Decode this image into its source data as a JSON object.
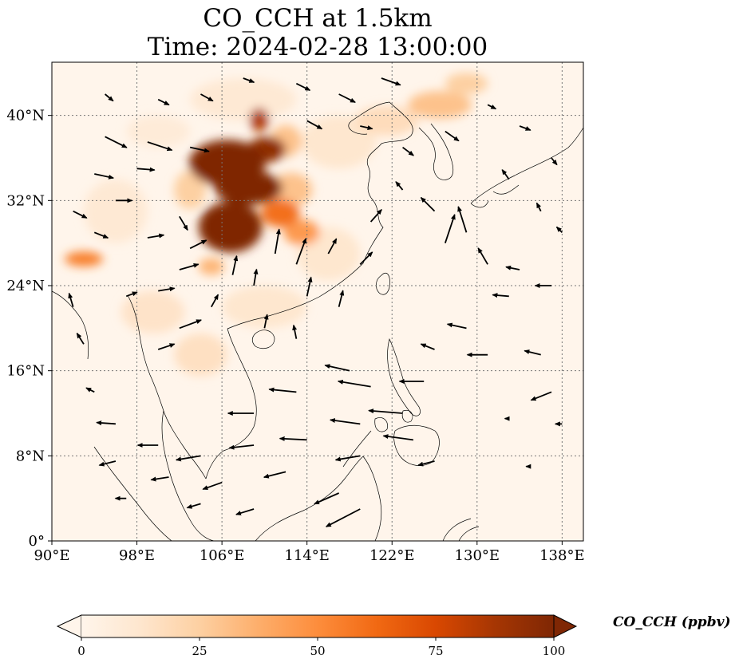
{
  "title": {
    "line1": "CO_CCH at 1.5km",
    "line2": "Time: 2024-02-28 13:00:00"
  },
  "map": {
    "lon_range": [
      90,
      140
    ],
    "lat_range": [
      0,
      45
    ],
    "lon_ticks": [
      {
        "value": 90,
        "label": "90°E"
      },
      {
        "value": 98,
        "label": "98°E"
      },
      {
        "value": 106,
        "label": "106°E"
      },
      {
        "value": 114,
        "label": "114°E"
      },
      {
        "value": 122,
        "label": "122°E"
      },
      {
        "value": 130,
        "label": "130°E"
      },
      {
        "value": 138,
        "label": "138°E"
      }
    ],
    "lat_ticks": [
      {
        "value": 0,
        "label": "0°"
      },
      {
        "value": 8,
        "label": "8°N"
      },
      {
        "value": 16,
        "label": "16°N"
      },
      {
        "value": 24,
        "label": "24°N"
      },
      {
        "value": 32,
        "label": "32°N"
      },
      {
        "value": 40,
        "label": "40°N"
      }
    ],
    "gridlines": "dotted",
    "background_color": "#fff5eb",
    "plumes": [
      {
        "lon": 106.5,
        "lat": 35.5,
        "rlon": 3.6,
        "rlat": 2.2,
        "value": 100
      },
      {
        "lon": 108.5,
        "lat": 33.2,
        "rlon": 3.2,
        "rlat": 1.6,
        "value": 100
      },
      {
        "lon": 106.8,
        "lat": 29.5,
        "rlon": 3.0,
        "rlat": 2.4,
        "value": 100
      },
      {
        "lon": 110.2,
        "lat": 36.8,
        "rlon": 1.8,
        "rlat": 1.2,
        "value": 95
      },
      {
        "lon": 109.5,
        "lat": 39.6,
        "rlon": 0.9,
        "rlat": 1.1,
        "value": 85
      },
      {
        "lon": 111.5,
        "lat": 30.8,
        "rlon": 1.8,
        "rlat": 1.3,
        "value": 60
      },
      {
        "lon": 113.5,
        "lat": 29.0,
        "rlon": 1.7,
        "rlat": 1.2,
        "value": 45
      },
      {
        "lon": 112.5,
        "lat": 33.0,
        "rlon": 2.0,
        "rlat": 1.6,
        "value": 30
      },
      {
        "lon": 105.0,
        "lat": 25.8,
        "rlon": 1.2,
        "rlat": 0.8,
        "value": 35
      },
      {
        "lon": 103.0,
        "lat": 33.0,
        "rlon": 1.5,
        "rlat": 1.8,
        "value": 25
      },
      {
        "lon": 112.0,
        "lat": 37.6,
        "rlon": 1.5,
        "rlat": 1.5,
        "value": 30
      },
      {
        "lon": 93.0,
        "lat": 26.5,
        "rlon": 1.8,
        "rlat": 0.7,
        "value": 55
      },
      {
        "lon": 126.5,
        "lat": 41.0,
        "rlon": 3.0,
        "rlat": 1.3,
        "value": 30
      },
      {
        "lon": 121.5,
        "lat": 39.5,
        "rlon": 3.0,
        "rlat": 1.4,
        "value": 18
      },
      {
        "lon": 129.0,
        "lat": 43.0,
        "rlon": 2.0,
        "rlat": 1.0,
        "value": 25
      },
      {
        "lon": 117.0,
        "lat": 37.5,
        "rlon": 3.5,
        "rlat": 2.5,
        "value": 12
      },
      {
        "lon": 99.5,
        "lat": 21.5,
        "rlon": 3.0,
        "rlat": 2.0,
        "value": 14
      },
      {
        "lon": 104.0,
        "lat": 17.5,
        "rlon": 2.5,
        "rlat": 2.0,
        "value": 16
      },
      {
        "lon": 110.0,
        "lat": 22.0,
        "rlon": 4.0,
        "rlat": 2.0,
        "value": 12
      },
      {
        "lon": 116.0,
        "lat": 27.0,
        "rlon": 3.0,
        "rlat": 2.5,
        "value": 12
      },
      {
        "lon": 96.0,
        "lat": 31.0,
        "rlon": 3.0,
        "rlat": 3.0,
        "value": 10
      },
      {
        "lon": 108.0,
        "lat": 41.5,
        "rlon": 5.0,
        "rlat": 2.0,
        "value": 10
      },
      {
        "lon": 100.0,
        "lat": 38.5,
        "rlon": 3.0,
        "rlat": 1.5,
        "value": 8
      }
    ],
    "wind_vectors": [
      {
        "lon": 95,
        "lat": 38,
        "u": 1.6,
        "v": -0.8
      },
      {
        "lon": 99,
        "lat": 37.5,
        "u": 1.8,
        "v": -0.6
      },
      {
        "lon": 103,
        "lat": 37,
        "u": 1.4,
        "v": -0.3
      },
      {
        "lon": 94,
        "lat": 34.5,
        "u": 1.4,
        "v": -0.3
      },
      {
        "lon": 98,
        "lat": 35,
        "u": 1.3,
        "v": -0.1
      },
      {
        "lon": 96,
        "lat": 32,
        "u": 1.2,
        "v": 0
      },
      {
        "lon": 92,
        "lat": 31,
        "u": 1.0,
        "v": -0.5
      },
      {
        "lon": 94,
        "lat": 29,
        "u": 1.0,
        "v": -0.4
      },
      {
        "lon": 99,
        "lat": 28.5,
        "u": 1.2,
        "v": 0.2
      },
      {
        "lon": 102,
        "lat": 30.5,
        "u": 0.6,
        "v": -1.0
      },
      {
        "lon": 103,
        "lat": 27.5,
        "u": 1.2,
        "v": 0.6
      },
      {
        "lon": 102,
        "lat": 25.5,
        "u": 1.4,
        "v": 0.4
      },
      {
        "lon": 100,
        "lat": 23.5,
        "u": 1.2,
        "v": 0.2
      },
      {
        "lon": 102,
        "lat": 20,
        "u": 1.6,
        "v": 0.6
      },
      {
        "lon": 100,
        "lat": 18,
        "u": 1.2,
        "v": 0.4
      },
      {
        "lon": 97,
        "lat": 23,
        "u": 0.8,
        "v": 0.3
      },
      {
        "lon": 105,
        "lat": 22,
        "u": 0.5,
        "v": 0.9
      },
      {
        "lon": 107,
        "lat": 25,
        "u": 0.3,
        "v": 1.4
      },
      {
        "lon": 109,
        "lat": 24,
        "u": 0.2,
        "v": 1.2
      },
      {
        "lon": 111,
        "lat": 27,
        "u": 0.3,
        "v": 1.8
      },
      {
        "lon": 113,
        "lat": 26,
        "u": 0.7,
        "v": 1.9
      },
      {
        "lon": 116,
        "lat": 27,
        "u": 0.6,
        "v": 1.1
      },
      {
        "lon": 119,
        "lat": 26,
        "u": 0.9,
        "v": 0.9
      },
      {
        "lon": 114,
        "lat": 23,
        "u": 0.3,
        "v": 1.4
      },
      {
        "lon": 117,
        "lat": 22,
        "u": 0.3,
        "v": 1.2
      },
      {
        "lon": 110,
        "lat": 20,
        "u": 0.2,
        "v": 1.0
      },
      {
        "lon": 113,
        "lat": 19,
        "u": -0.2,
        "v": 1.0
      },
      {
        "lon": 120,
        "lat": 30,
        "u": 0.8,
        "v": 0.9
      },
      {
        "lon": 123,
        "lat": 33,
        "u": -0.5,
        "v": 0.6
      },
      {
        "lon": 126,
        "lat": 31,
        "u": -1.0,
        "v": 1.0
      },
      {
        "lon": 127,
        "lat": 28,
        "u": 0.7,
        "v": 2.1
      },
      {
        "lon": 129,
        "lat": 29,
        "u": -0.6,
        "v": 1.9
      },
      {
        "lon": 131,
        "lat": 26,
        "u": -0.7,
        "v": 1.2
      },
      {
        "lon": 134,
        "lat": 25.5,
        "u": -1.0,
        "v": 0.2
      },
      {
        "lon": 137,
        "lat": 24,
        "u": -1.2,
        "v": 0
      },
      {
        "lon": 133,
        "lat": 23,
        "u": -1.2,
        "v": 0.1
      },
      {
        "lon": 129,
        "lat": 20,
        "u": -1.4,
        "v": 0.3
      },
      {
        "lon": 126,
        "lat": 18,
        "u": -1.0,
        "v": 0.4
      },
      {
        "lon": 131,
        "lat": 17.5,
        "u": -1.5,
        "v": 0
      },
      {
        "lon": 136,
        "lat": 17.5,
        "u": -1.2,
        "v": 0.3
      },
      {
        "lon": 125,
        "lat": 15,
        "u": -1.8,
        "v": 0
      },
      {
        "lon": 120,
        "lat": 14.5,
        "u": -2.4,
        "v": 0.4
      },
      {
        "lon": 118,
        "lat": 16,
        "u": -1.8,
        "v": 0.4
      },
      {
        "lon": 113,
        "lat": 14,
        "u": -2.0,
        "v": 0.2
      },
      {
        "lon": 109,
        "lat": 12,
        "u": -1.9,
        "v": 0
      },
      {
        "lon": 119,
        "lat": 11,
        "u": -2.2,
        "v": 0.3
      },
      {
        "lon": 123,
        "lat": 12,
        "u": -2.5,
        "v": 0.2
      },
      {
        "lon": 114,
        "lat": 9.5,
        "u": -2.0,
        "v": 0.1
      },
      {
        "lon": 119,
        "lat": 8,
        "u": -1.8,
        "v": -0.3
      },
      {
        "lon": 124,
        "lat": 9.5,
        "u": -2.2,
        "v": 0.3
      },
      {
        "lon": 109,
        "lat": 9,
        "u": -1.8,
        "v": -0.2
      },
      {
        "lon": 104,
        "lat": 8,
        "u": -1.8,
        "v": -0.3
      },
      {
        "lon": 100,
        "lat": 9,
        "u": -1.5,
        "v": 0
      },
      {
        "lon": 96,
        "lat": 11,
        "u": -1.4,
        "v": 0.1
      },
      {
        "lon": 96,
        "lat": 7.5,
        "u": -1.2,
        "v": -0.3
      },
      {
        "lon": 101,
        "lat": 6,
        "u": -1.3,
        "v": -0.2
      },
      {
        "lon": 106,
        "lat": 5.5,
        "u": -1.4,
        "v": -0.5
      },
      {
        "lon": 112,
        "lat": 6.5,
        "u": -1.6,
        "v": -0.4
      },
      {
        "lon": 117,
        "lat": 4.5,
        "u": -1.8,
        "v": -0.8
      },
      {
        "lon": 119,
        "lat": 3,
        "u": -2.5,
        "v": -1.3
      },
      {
        "lon": 126,
        "lat": 7.5,
        "u": -1.2,
        "v": -0.3
      },
      {
        "lon": 109,
        "lat": 3,
        "u": -1.3,
        "v": -0.4
      },
      {
        "lon": 104,
        "lat": 3.5,
        "u": -1.0,
        "v": -0.3
      },
      {
        "lon": 97,
        "lat": 4,
        "u": -0.8,
        "v": 0
      },
      {
        "lon": 94,
        "lat": 14,
        "u": -0.6,
        "v": 0.3
      },
      {
        "lon": 93,
        "lat": 18.5,
        "u": -0.5,
        "v": 0.8
      },
      {
        "lon": 92,
        "lat": 22,
        "u": -0.3,
        "v": 1.0
      },
      {
        "lon": 95,
        "lat": 42,
        "u": 0.6,
        "v": -0.5
      },
      {
        "lon": 100,
        "lat": 41.5,
        "u": 0.8,
        "v": -0.4
      },
      {
        "lon": 104,
        "lat": 42,
        "u": 0.9,
        "v": -0.5
      },
      {
        "lon": 108,
        "lat": 43.5,
        "u": 0.8,
        "v": -0.3
      },
      {
        "lon": 113,
        "lat": 43,
        "u": 1.0,
        "v": -0.5
      },
      {
        "lon": 117,
        "lat": 42,
        "u": 1.2,
        "v": -0.6
      },
      {
        "lon": 121,
        "lat": 43.5,
        "u": 1.4,
        "v": -0.5
      },
      {
        "lon": 114,
        "lat": 39.5,
        "u": 1.1,
        "v": -0.6
      },
      {
        "lon": 119,
        "lat": 39,
        "u": 0.9,
        "v": -0.2
      },
      {
        "lon": 123,
        "lat": 37,
        "u": 0.8,
        "v": -0.6
      },
      {
        "lon": 127,
        "lat": 38.5,
        "u": 1.0,
        "v": -0.7
      },
      {
        "lon": 131,
        "lat": 41,
        "u": 0.6,
        "v": -0.3
      },
      {
        "lon": 134,
        "lat": 39,
        "u": 0.8,
        "v": -0.3
      },
      {
        "lon": 137,
        "lat": 36,
        "u": 0.4,
        "v": -0.5
      },
      {
        "lon": 133,
        "lat": 34,
        "u": -0.5,
        "v": 0.7
      },
      {
        "lon": 136,
        "lat": 31,
        "u": -0.3,
        "v": 0.6
      },
      {
        "lon": 138,
        "lat": 29,
        "u": -0.4,
        "v": 0.4
      },
      {
        "lon": 137,
        "lat": 14,
        "u": -1.5,
        "v": -0.6
      },
      {
        "lon": 138,
        "lat": 11,
        "u": -0.5,
        "v": 0
      },
      {
        "lon": 133,
        "lat": 11.5,
        "u": -0.3,
        "v": 0
      },
      {
        "lon": 135,
        "lat": 7,
        "u": -0.3,
        "v": 0
      }
    ]
  },
  "colorbar": {
    "label": "CO_CCH (ppbv)",
    "min": 0,
    "max": 100,
    "extend": "both",
    "ticks": [
      {
        "value": 0,
        "label": "0"
      },
      {
        "value": 25,
        "label": "25"
      },
      {
        "value": 50,
        "label": "50"
      },
      {
        "value": 75,
        "label": "75"
      },
      {
        "value": 100,
        "label": "100"
      }
    ],
    "colors": [
      "#fff5eb",
      "#fee6ce",
      "#fdd0a2",
      "#fdae6b",
      "#fd8d3c",
      "#f16913",
      "#d94801",
      "#a63603",
      "#7f2704"
    ]
  }
}
